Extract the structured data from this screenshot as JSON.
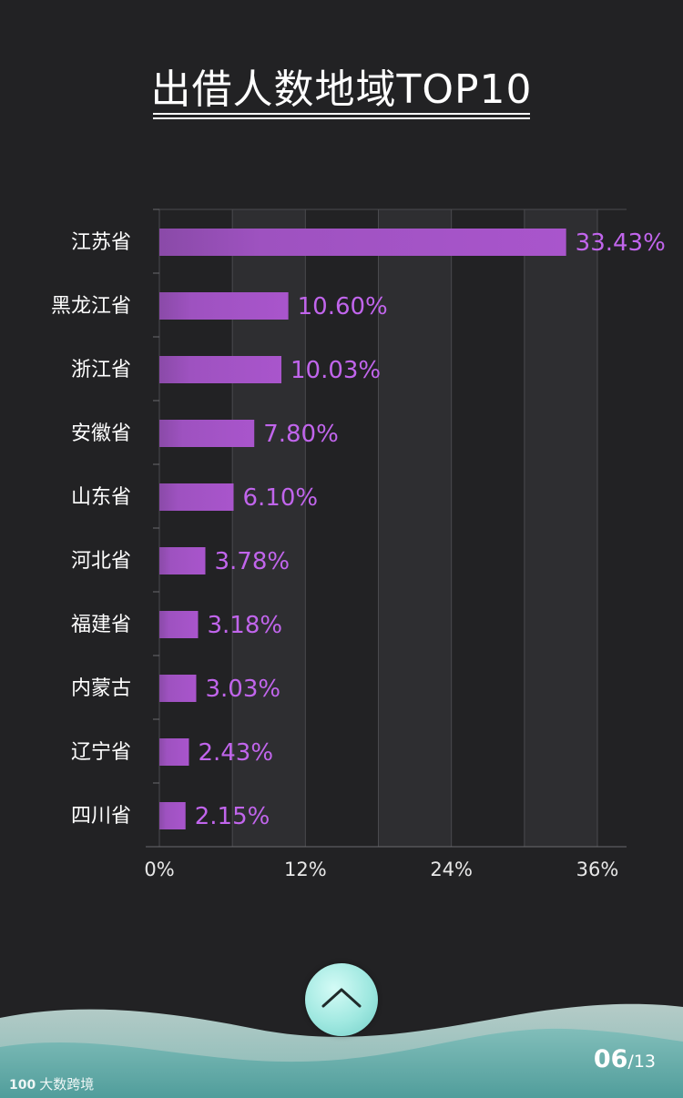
{
  "header": {
    "title": "出借人数地域TOP10"
  },
  "chart_data": {
    "type": "bar",
    "orientation": "horizontal",
    "title": "出借人数地域TOP10",
    "categories": [
      "江苏省",
      "黑龙江省",
      "浙江省",
      "安徽省",
      "山东省",
      "河北省",
      "福建省",
      "内蒙古",
      "辽宁省",
      "四川省"
    ],
    "values": [
      33.43,
      10.6,
      10.03,
      7.8,
      6.1,
      3.78,
      3.18,
      3.03,
      2.43,
      2.15
    ],
    "value_labels": [
      "33.43%",
      "10.60%",
      "10.03%",
      "7.80%",
      "6.10%",
      "3.78%",
      "3.18%",
      "3.03%",
      "2.43%",
      "2.15%"
    ],
    "xlim": [
      0,
      36
    ],
    "xticks": [
      0,
      12,
      24,
      36
    ],
    "xtick_labels": [
      "0%",
      "12%",
      "24%",
      "36%"
    ],
    "grid": true
  },
  "colors": {
    "background": "#222224",
    "bar": "#a552c8",
    "value_label": "#c165ec",
    "accent_button": "#9fe8e0"
  },
  "controls": {
    "scroll_up_icon": "chevron-up-icon"
  },
  "pager": {
    "current": "06",
    "separator": "/",
    "total": "13"
  },
  "brand": {
    "mark": "100",
    "name": "大数跨境"
  }
}
